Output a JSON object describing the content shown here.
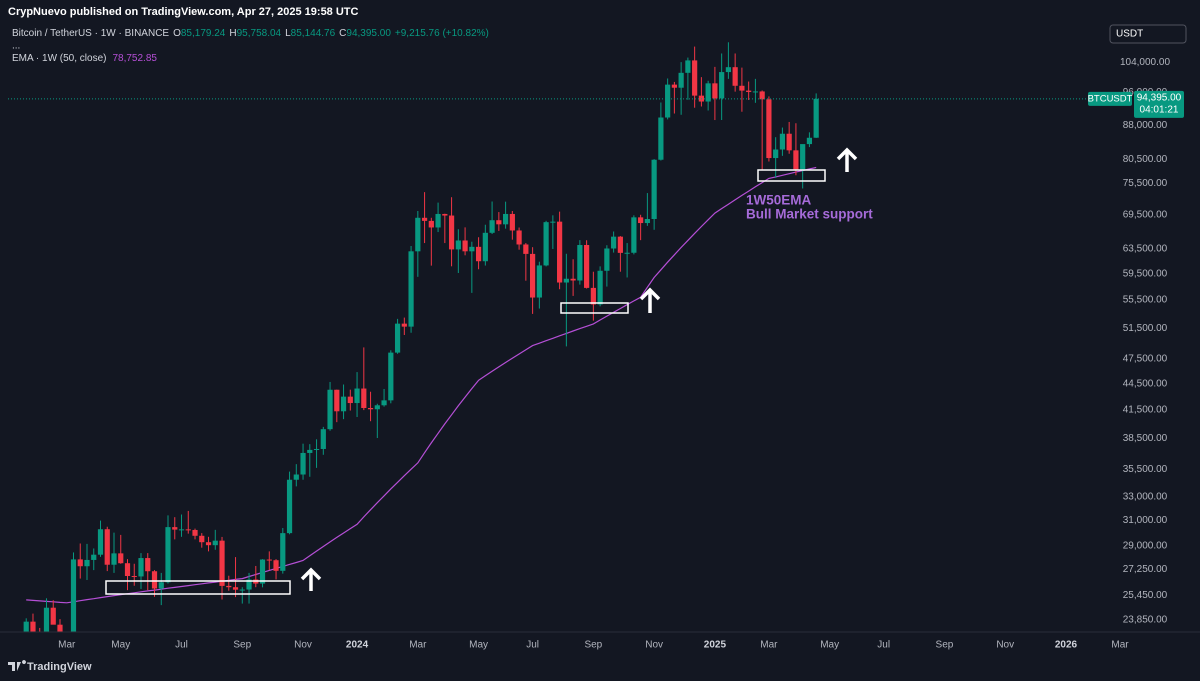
{
  "header": "CrypNuevo published on TradingView.com, Apr 27, 2025 19:58 UTC",
  "footer": "TradingView",
  "chart_data": {
    "type": "candlestick",
    "title": "Bitcoin / TetherUS · 1W · BINANCE",
    "ohlc_legend": [
      "O",
      "85,179.24",
      "H",
      "95,758.04",
      "L",
      "85,144.76",
      "C",
      "94,395.00",
      "+9,215.76 (+10.82%)"
    ],
    "legend_more": "...",
    "currency": "USDT",
    "symbol": "BTCUSDT",
    "last_price_label": "94,395.00",
    "countdown": "04:01:21",
    "up_color": "#089981",
    "down_color": "#f23645",
    "x": [
      0,
      1,
      2,
      3,
      4,
      5,
      6,
      7,
      8,
      9,
      10,
      11,
      12,
      13,
      14,
      15,
      16,
      17,
      18,
      19,
      20,
      21,
      22,
      23,
      24,
      25,
      26,
      27,
      28,
      29,
      30,
      31,
      32,
      33,
      34,
      35,
      36,
      37,
      38,
      39,
      40,
      41,
      42,
      43,
      44,
      45,
      46,
      47,
      48,
      49,
      50,
      51,
      52,
      53,
      54,
      55,
      56,
      57,
      58,
      59,
      60,
      61,
      62,
      63,
      64,
      65,
      66,
      67,
      68,
      69,
      70,
      71,
      72,
      73,
      74,
      75,
      76,
      77,
      78,
      79,
      80,
      81,
      82,
      83,
      84,
      85,
      86,
      87,
      88,
      89,
      90,
      91,
      92,
      93,
      94,
      95,
      96,
      97,
      98,
      99,
      100,
      101,
      102,
      103,
      104,
      105,
      106,
      107,
      108,
      109,
      110,
      111,
      112,
      113,
      114,
      115,
      116,
      117
    ],
    "open": [
      22700,
      23740,
      22930,
      21770,
      24630,
      23550,
      22430,
      22140,
      27980,
      27480,
      27940,
      28330,
      30300,
      27590,
      28430,
      27700,
      26780,
      26750,
      28080,
      27120,
      25910,
      26340,
      30470,
      30270,
      30290,
      30240,
      29780,
      29280,
      29050,
      29400,
      26090,
      26000,
      25830,
      25840,
      26530,
      26250,
      27970,
      27920,
      27150,
      29990,
      34530,
      35010,
      37060,
      37360,
      37450,
      39460,
      43790,
      41370,
      43000,
      42280,
      43930,
      41730,
      41590,
      42030,
      42580,
      48300,
      52140,
      51730,
      63110,
      68950,
      68390,
      67210,
      69650,
      69360,
      63430,
      64940,
      63110,
      63860,
      61480,
      66270,
      68510,
      67770,
      69650,
      66680,
      64260,
      62680,
      55860,
      60800,
      68160,
      68250,
      58120,
      58700,
      58430,
      64170,
      57300,
      54850,
      59950,
      63580,
      65600,
      62850,
      62870,
      69030,
      68000,
      68730,
      80370,
      89850,
      98000,
      97200,
      101100,
      104470,
      95190,
      93720,
      98330,
      94500,
      101300,
      102620,
      97700,
      96460,
      96120,
      96250,
      94270,
      80730,
      82570,
      86080,
      82390,
      78350,
      83760,
      85179.24
    ],
    "high": [
      23950,
      24250,
      23350,
      25250,
      25120,
      23900,
      22600,
      28500,
      29180,
      29150,
      28800,
      31000,
      30500,
      30030,
      29850,
      28000,
      27660,
      28450,
      28450,
      27200,
      27000,
      31430,
      31280,
      31500,
      31800,
      30350,
      29990,
      29700,
      30250,
      29690,
      26800,
      28150,
      26000,
      27000,
      27500,
      28000,
      28580,
      28000,
      30400,
      35280,
      35980,
      37980,
      37930,
      38420,
      39700,
      44700,
      43800,
      44400,
      43800,
      45880,
      48970,
      43560,
      42200,
      43880,
      48600,
      52800,
      52980,
      64000,
      70200,
      73780,
      68950,
      71770,
      69700,
      72800,
      66900,
      67230,
      64730,
      65500,
      67700,
      71980,
      70000,
      71950,
      70200,
      67200,
      64500,
      63800,
      61400,
      68400,
      69400,
      70080,
      62700,
      61800,
      65000,
      64980,
      59800,
      60650,
      64130,
      66500,
      65700,
      64500,
      69400,
      69500,
      73600,
      80500,
      93480,
      99600,
      98700,
      104000,
      105250,
      108350,
      99950,
      99000,
      102700,
      106400,
      109590,
      106400,
      102500,
      98800,
      99500,
      96500,
      95000,
      85300,
      87500,
      88800,
      88500,
      83600,
      86400,
      95758.04
    ],
    "low": [
      22300,
      22700,
      21450,
      21350,
      23600,
      21980,
      19550,
      21900,
      26600,
      26500,
      27200,
      28170,
      27130,
      27000,
      27660,
      25800,
      26100,
      25880,
      25800,
      25350,
      24800,
      26250,
      29500,
      29700,
      29950,
      29500,
      28860,
      28580,
      28700,
      25170,
      25760,
      25330,
      24900,
      24900,
      26000,
      25990,
      27200,
      26540,
      26950,
      29900,
      33930,
      34530,
      34800,
      35630,
      36880,
      39300,
      40200,
      40520,
      41450,
      40750,
      41500,
      40300,
      38550,
      41880,
      42250,
      48150,
      50600,
      50900,
      59000,
      64500,
      60770,
      66400,
      64500,
      60660,
      59600,
      62450,
      56550,
      60190,
      60780,
      66060,
      66600,
      67000,
      65080,
      63380,
      58400,
      53500,
      54260,
      60650,
      63500,
      57100,
      49100,
      56100,
      57800,
      57200,
      52550,
      54580,
      57500,
      62900,
      59800,
      58900,
      62600,
      65000,
      67500,
      66800,
      80200,
      89400,
      90800,
      90500,
      94150,
      92200,
      92500,
      91530,
      89250,
      89260,
      99500,
      96200,
      91230,
      94100,
      93400,
      78250,
      80000,
      76600,
      81200,
      81650,
      77150,
      74500,
      83100,
      85144.76
    ],
    "close": [
      23740,
      22930,
      21770,
      24630,
      23550,
      22430,
      22140,
      27980,
      27480,
      27940,
      28330,
      30300,
      27590,
      28430,
      27700,
      26780,
      26750,
      28080,
      27120,
      25910,
      26340,
      30470,
      30270,
      30290,
      30240,
      29780,
      29280,
      29050,
      29400,
      26090,
      26000,
      25830,
      25840,
      26530,
      26250,
      27970,
      27920,
      27150,
      29990,
      34530,
      35010,
      37060,
      37360,
      37450,
      39460,
      43790,
      41370,
      43000,
      42280,
      43930,
      41730,
      41590,
      42030,
      42580,
      48300,
      52140,
      51730,
      63110,
      68950,
      68390,
      67210,
      69650,
      69360,
      63430,
      64940,
      63110,
      63860,
      61480,
      66270,
      68510,
      67770,
      69650,
      66680,
      64260,
      62680,
      55860,
      60800,
      68160,
      68250,
      58120,
      58700,
      58430,
      64170,
      57300,
      54850,
      59950,
      63580,
      65600,
      62850,
      62870,
      69030,
      68000,
      68730,
      80370,
      89850,
      98000,
      97200,
      101100,
      104470,
      95190,
      93720,
      98330,
      94500,
      101300,
      102620,
      97700,
      96460,
      96120,
      96250,
      94270,
      80730,
      82570,
      86080,
      82390,
      78350,
      83760,
      85170,
      94395
    ],
    "series": [
      {
        "name": "EMA · 1W (50, close)",
        "value_label": "78,752.85",
        "color": "#b54fd6",
        "values": [
          25140,
          25110,
          25080,
          25045,
          25015,
          24980,
          24950,
          25020,
          25090,
          25160,
          25225,
          25295,
          25365,
          25430,
          25500,
          25560,
          25620,
          25685,
          25745,
          25805,
          25865,
          25930,
          25990,
          26050,
          26110,
          26170,
          26235,
          26295,
          26355,
          26415,
          26480,
          26540,
          26600,
          26745,
          26890,
          27035,
          27180,
          27320,
          27465,
          27610,
          27755,
          27900,
          28250,
          28600,
          28950,
          29300,
          29650,
          30000,
          30350,
          30700,
          31300,
          31900,
          32500,
          33100,
          33700,
          34300,
          34900,
          35500,
          36100,
          37080,
          38055,
          39035,
          40010,
          40990,
          41970,
          42945,
          43925,
          44900,
          45440,
          45975,
          46510,
          47050,
          47590,
          48125,
          48660,
          49200,
          49520,
          49845,
          50165,
          50490,
          50810,
          51130,
          51455,
          51780,
          52100,
          52645,
          53185,
          53730,
          54270,
          54815,
          55360,
          55900,
          57400,
          58900,
          60110,
          61320,
          62535,
          63745,
          64955,
          66165,
          67380,
          68590,
          69800,
          70640,
          71475,
          72310,
          73150,
          73990,
          74825,
          75660,
          76500,
          76820,
          77145,
          77465,
          77790,
          78110,
          78430,
          78752.85
        ]
      }
    ],
    "annotations": [
      "1W50EMA",
      "Bull Market support"
    ],
    "annotation_color": "#a66bd9",
    "xlim": [
      -2.7,
      166
    ],
    "xticks": [
      {
        "value": 6,
        "label": "Mar"
      },
      {
        "value": 14,
        "label": "May"
      },
      {
        "value": 23,
        "label": "Jul"
      },
      {
        "value": 32,
        "label": "Sep"
      },
      {
        "value": 41,
        "label": "Nov"
      },
      {
        "value": 49,
        "label": "2024"
      },
      {
        "value": 58,
        "label": "Mar"
      },
      {
        "value": 67,
        "label": "May"
      },
      {
        "value": 75,
        "label": "Jul"
      },
      {
        "value": 84,
        "label": "Sep"
      },
      {
        "value": 93,
        "label": "Nov"
      },
      {
        "value": 102,
        "label": "2025"
      },
      {
        "value": 110,
        "label": "Mar"
      },
      {
        "value": 119,
        "label": "May"
      },
      {
        "value": 127,
        "label": "Jul"
      },
      {
        "value": 136,
        "label": "Sep"
      },
      {
        "value": 145,
        "label": "Nov"
      },
      {
        "value": 154,
        "label": "2026"
      },
      {
        "value": 162,
        "label": "Mar"
      }
    ],
    "ylim": [
      23100,
      113800
    ],
    "yticks": [
      {
        "value": 23850,
        "label": "23,850.00"
      },
      {
        "value": 25450,
        "label": "25,450.00"
      },
      {
        "value": 27250,
        "label": "27,250.00"
      },
      {
        "value": 29000,
        "label": "29,000.00"
      },
      {
        "value": 31000,
        "label": "31,000.00"
      },
      {
        "value": 33000,
        "label": "33,000.00"
      },
      {
        "value": 35500,
        "label": "35,500.00"
      },
      {
        "value": 38500,
        "label": "38,500.00"
      },
      {
        "value": 41500,
        "label": "41,500.00"
      },
      {
        "value": 44500,
        "label": "44,500.00"
      },
      {
        "value": 47500,
        "label": "47,500.00"
      },
      {
        "value": 51500,
        "label": "51,500.00"
      },
      {
        "value": 55500,
        "label": "55,500.00"
      },
      {
        "value": 59500,
        "label": "59,500.00"
      },
      {
        "value": 63500,
        "label": "63,500.00"
      },
      {
        "value": 69500,
        "label": "69,500.00"
      },
      {
        "value": 75500,
        "label": "75,500.00"
      },
      {
        "value": 80500,
        "label": "80,500.00"
      },
      {
        "value": 88000,
        "label": "88,000.00"
      },
      {
        "value": 96000,
        "label": "96,000.00"
      },
      {
        "value": 104000,
        "label": "104,000.00"
      }
    ],
    "log_scale": true,
    "grid": false
  }
}
